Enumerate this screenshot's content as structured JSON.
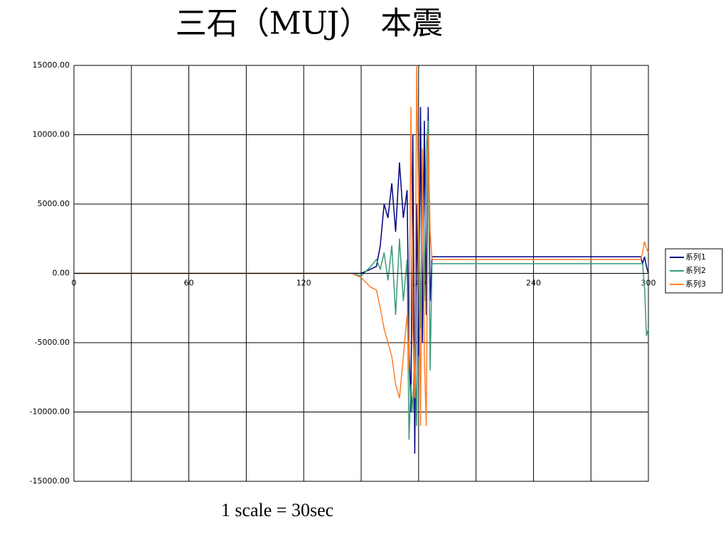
{
  "chart_data": {
    "type": "line",
    "title": "三石（MUJ） 本震",
    "note": "1 scale = 30sec",
    "x": [
      0,
      30,
      60,
      90,
      120,
      145,
      150,
      155,
      158,
      160,
      162,
      164,
      166,
      168,
      170,
      172,
      174,
      175,
      176,
      177,
      178,
      179,
      180,
      181,
      182,
      183,
      184,
      185,
      186,
      187,
      188,
      190,
      220,
      250,
      280,
      296,
      297,
      298,
      299,
      300
    ],
    "series": [
      {
        "name": "系列1",
        "color": "#000080",
        "values": [
          0,
          0,
          0,
          0,
          0,
          0,
          0,
          300,
          500,
          2000,
          5000,
          4000,
          6500,
          3000,
          8000,
          4000,
          6000,
          -5000,
          -10000,
          10000,
          -13000,
          5000,
          -6000,
          12000,
          -5000,
          11000,
          -3000,
          12000,
          -2000,
          1200,
          1200,
          1200,
          1200,
          1200,
          1200,
          1200,
          700,
          1200,
          500,
          0
        ]
      },
      {
        "name": "系列2",
        "color": "#3a9a7a",
        "values": [
          0,
          0,
          0,
          0,
          0,
          0,
          -200,
          500,
          1000,
          300,
          1500,
          -500,
          2000,
          -3000,
          2500,
          -2000,
          1000,
          -12000,
          -8000,
          -10000,
          -5000,
          -11000,
          5000,
          -4000,
          8000,
          -2000,
          9000,
          11000,
          -7000,
          700,
          700,
          700,
          700,
          700,
          700,
          700,
          700,
          -1000,
          -4500,
          -4000
        ]
      },
      {
        "name": "系列3",
        "color": "#ff7f27",
        "values": [
          0,
          0,
          0,
          0,
          0,
          0,
          -300,
          -1000,
          -1200,
          -2500,
          -4000,
          -5000,
          -6000,
          -8000,
          -9000,
          -6000,
          -3000,
          -7000,
          12000,
          -4000,
          -9000,
          15000,
          4000,
          -11000,
          9000,
          -6000,
          -11000,
          10000,
          3000,
          1000,
          1000,
          1000,
          1000,
          1000,
          1000,
          1000,
          1500,
          2300,
          1800,
          1500
        ]
      }
    ],
    "xlim": [
      0,
      300
    ],
    "xticks": [
      0,
      60,
      120,
      180,
      240,
      300
    ],
    "x_minor_grid": [
      30,
      90,
      150,
      210,
      270
    ],
    "ylim": [
      -15000,
      15000
    ],
    "yticks": [
      {
        "value": -15000,
        "label": "-15000.00"
      },
      {
        "value": -10000,
        "label": "-10000.00"
      },
      {
        "value": -5000,
        "label": "-5000.00"
      },
      {
        "value": 0,
        "label": "0.00"
      },
      {
        "value": 5000,
        "label": "5000.00"
      },
      {
        "value": 10000,
        "label": "10000.00"
      },
      {
        "value": 15000,
        "label": "15000.00"
      }
    ],
    "grid": true,
    "legend": "right"
  }
}
